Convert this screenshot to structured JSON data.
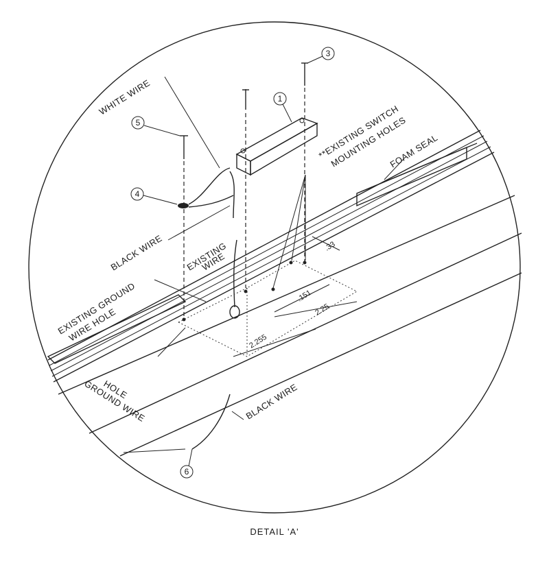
{
  "labels": {
    "white_wire": "WHITE WIRE",
    "existing_switch_line1": "**EXISTING SWITCH",
    "existing_switch_line2": "MOUNTING HOLES",
    "foam_seal": "FOAM SEAL",
    "black_wire_upper": "BLACK WIRE",
    "existing_wire_line1": "EXISTING",
    "existing_wire_line2": "WIRE",
    "existing_ground_line1": "EXISTING GROUND",
    "existing_ground_line2": "WIRE HOLE",
    "ground_wire_line1": "GROUND WIRE",
    "ground_wire_line2": "HOLE",
    "black_wire_lower": "BLACK WIRE"
  },
  "dimensions": {
    "d1": ".33",
    "d2": ".151",
    "d3": "2.25",
    "d4": "2.255"
  },
  "callouts": [
    "1",
    "3",
    "4",
    "5",
    "6"
  ],
  "caption": "DETAIL 'A'"
}
